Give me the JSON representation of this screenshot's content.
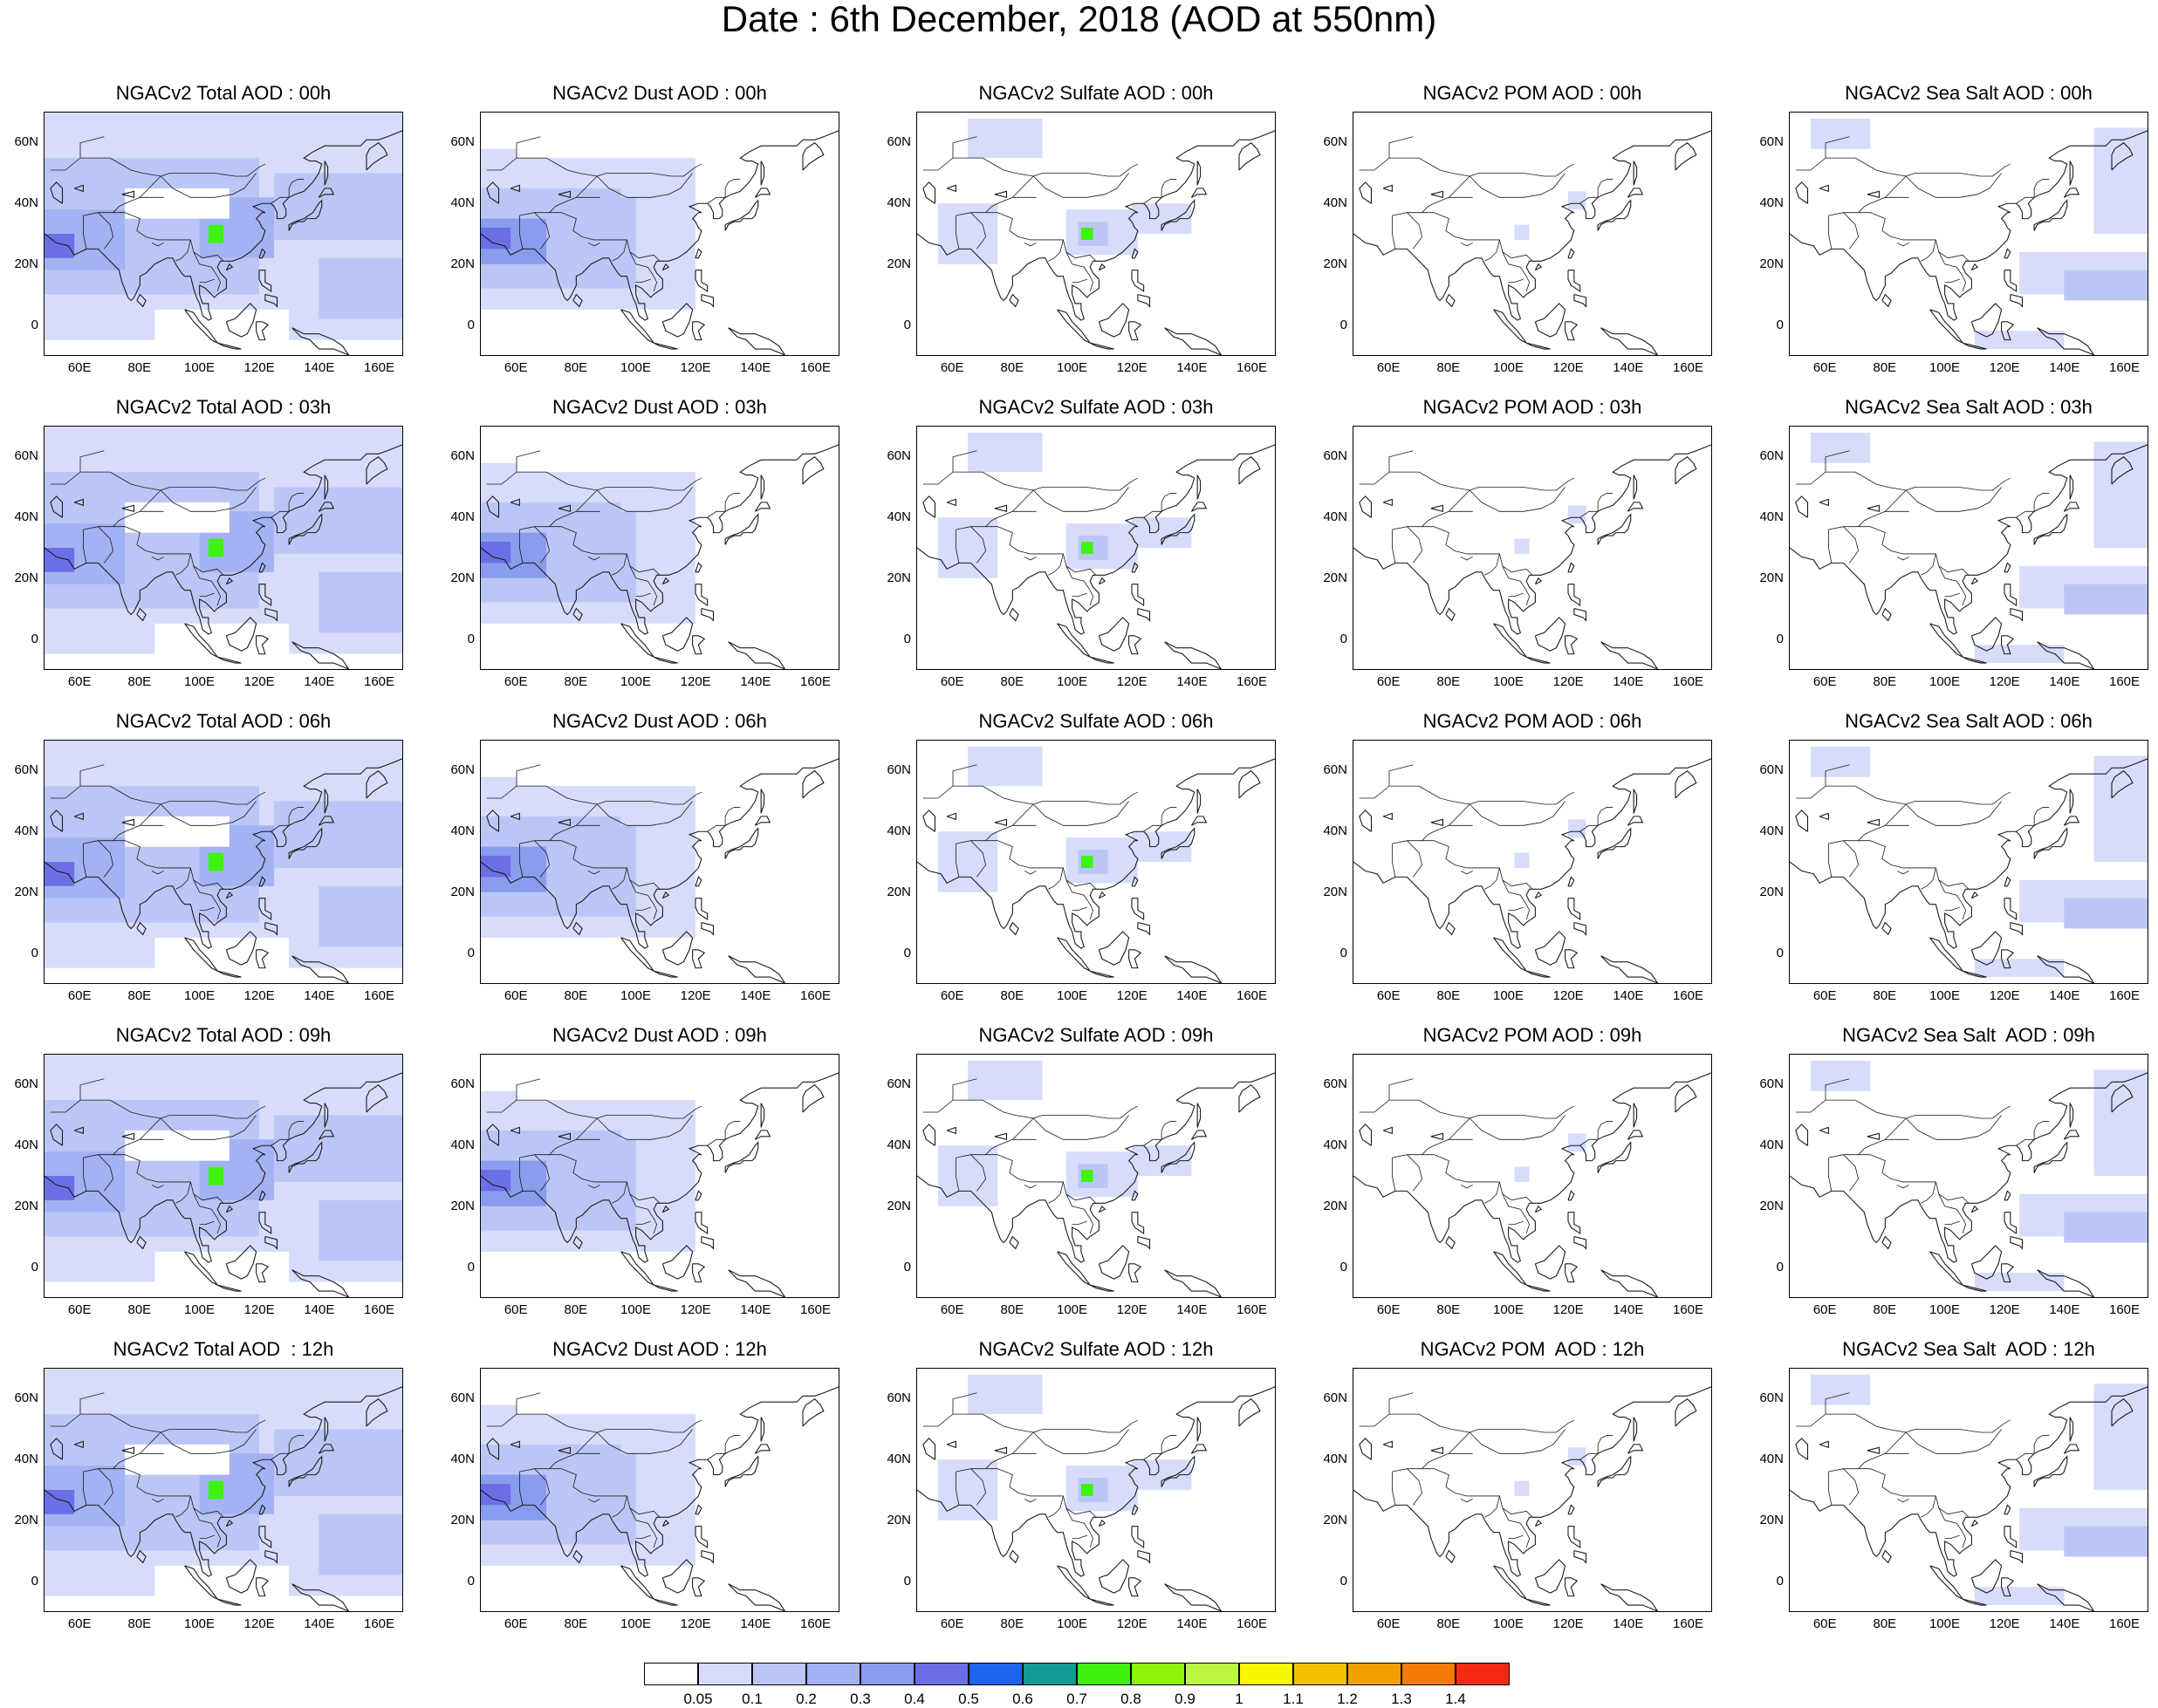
{
  "title": "Date : 6th December, 2018 (AOD at 550nm)",
  "axes": {
    "x_ticks": [
      "60E",
      "80E",
      "100E",
      "120E",
      "140E",
      "160E"
    ],
    "x_values": [
      60,
      80,
      100,
      120,
      140,
      160
    ],
    "xlim": [
      48,
      168
    ],
    "y_ticks": [
      "60N",
      "40N",
      "20N",
      "0"
    ],
    "y_values": [
      60,
      40,
      20,
      0
    ],
    "ylim": [
      -10,
      70
    ]
  },
  "panels": [
    {
      "title": "NGACv2 Total AOD : 00h",
      "species": "total",
      "hour": "00h"
    },
    {
      "title": "NGACv2 Dust AOD : 00h",
      "species": "dust",
      "hour": "00h"
    },
    {
      "title": "NGACv2 Sulfate AOD : 00h",
      "species": "sulfate",
      "hour": "00h"
    },
    {
      "title": "NGACv2 POM AOD : 00h",
      "species": "pom",
      "hour": "00h"
    },
    {
      "title": "NGACv2 Sea Salt AOD : 00h",
      "species": "seasalt",
      "hour": "00h"
    },
    {
      "title": "NGACv2 Total AOD : 03h",
      "species": "total",
      "hour": "03h"
    },
    {
      "title": "NGACv2 Dust AOD : 03h",
      "species": "dust",
      "hour": "03h"
    },
    {
      "title": "NGACv2 Sulfate AOD : 03h",
      "species": "sulfate",
      "hour": "03h"
    },
    {
      "title": "NGACv2 POM AOD : 03h",
      "species": "pom",
      "hour": "03h"
    },
    {
      "title": "NGACv2 Sea Salt AOD : 03h",
      "species": "seasalt",
      "hour": "03h"
    },
    {
      "title": "NGACv2 Total AOD : 06h",
      "species": "total",
      "hour": "06h"
    },
    {
      "title": "NGACv2 Dust AOD : 06h",
      "species": "dust",
      "hour": "06h"
    },
    {
      "title": "NGACv2 Sulfate AOD : 06h",
      "species": "sulfate",
      "hour": "06h"
    },
    {
      "title": "NGACv2 POM AOD : 06h",
      "species": "pom",
      "hour": "06h"
    },
    {
      "title": "NGACv2 Sea Salt AOD : 06h",
      "species": "seasalt",
      "hour": "06h"
    },
    {
      "title": "NGACv2 Total AOD : 09h",
      "species": "total",
      "hour": "09h"
    },
    {
      "title": "NGACv2 Dust AOD : 09h",
      "species": "dust",
      "hour": "09h"
    },
    {
      "title": "NGACv2 Sulfate AOD : 09h",
      "species": "sulfate",
      "hour": "09h"
    },
    {
      "title": "NGACv2 POM AOD : 09h",
      "species": "pom",
      "hour": "09h"
    },
    {
      "title": "NGACv2 Sea Salt  AOD : 09h",
      "species": "seasalt",
      "hour": "09h"
    },
    {
      "title": "NGACv2 Total AOD  : 12h",
      "species": "total",
      "hour": "12h"
    },
    {
      "title": "NGACv2 Dust AOD : 12h",
      "species": "dust",
      "hour": "12h"
    },
    {
      "title": "NGACv2 Sulfate AOD : 12h",
      "species": "sulfate",
      "hour": "12h"
    },
    {
      "title": "NGACv2 POM  AOD : 12h",
      "species": "pom",
      "hour": "12h"
    },
    {
      "title": "NGACv2 Sea Salt  AOD : 12h",
      "species": "seasalt",
      "hour": "12h"
    }
  ],
  "colorbar": {
    "labels": [
      "0.05",
      "0.1",
      "0.2",
      "0.3",
      "0.4",
      "0.5",
      "0.6",
      "0.7",
      "0.8",
      "0.9",
      "1",
      "1.1",
      "1.2",
      "1.3",
      "1.4"
    ],
    "colors": [
      "#ffffff",
      "#d6dcfa",
      "#bcc6f6",
      "#a3b2f2",
      "#8a9cee",
      "#6b6fe6",
      "#1f64ee",
      "#119a96",
      "#3ef30f",
      "#8ef40c",
      "#bcf542",
      "#f8f800",
      "#f4c100",
      "#f29f00",
      "#f57a06",
      "#f52a14"
    ]
  },
  "region_note_colors": {
    "coast": "#1a1a1a",
    "light": "#d6dcfa",
    "mid": "#a3b2f2",
    "hotspot": "#3ef30f"
  }
}
